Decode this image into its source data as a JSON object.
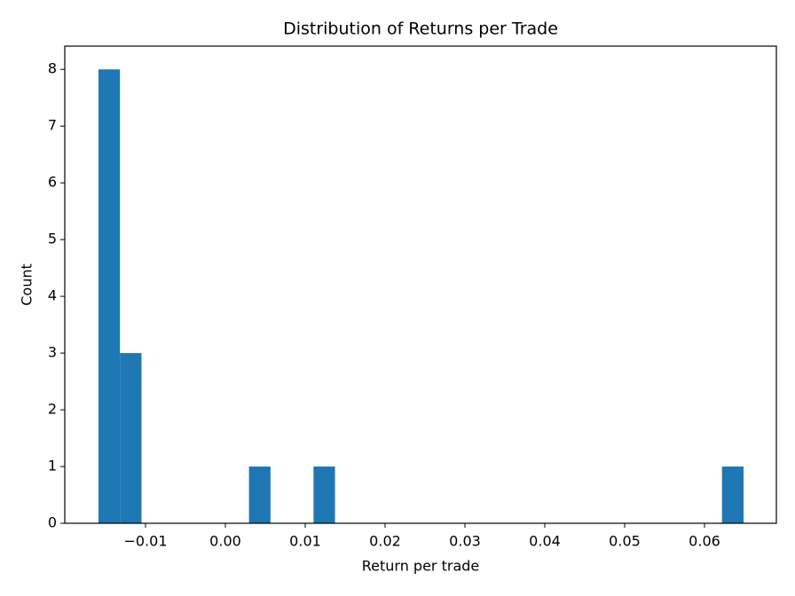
{
  "chart_data": {
    "type": "histogram",
    "title": "Distribution of Returns per Trade",
    "x_label": "Return per trade",
    "y_label": "Count",
    "color": "#1f77b4",
    "bins": [
      -0.01589,
      -0.0132,
      -0.0105,
      -0.00781,
      -0.00512,
      -0.00243,
      0.00027,
      0.00296,
      0.00565,
      0.00834,
      0.01104,
      0.01373,
      0.01642,
      0.01911,
      0.02181,
      0.0245,
      0.02719,
      0.02988,
      0.03258,
      0.03527,
      0.03796,
      0.04065,
      0.04335,
      0.04604,
      0.04873,
      0.05142,
      0.05412,
      0.05681,
      0.0595,
      0.06219,
      0.06489
    ],
    "values": [
      8,
      3,
      0,
      0,
      0,
      0,
      0,
      1,
      0,
      0,
      1,
      0,
      0,
      0,
      0,
      0,
      0,
      0,
      0,
      0,
      0,
      0,
      0,
      0,
      0,
      0,
      0,
      0,
      0,
      1
    ],
    "xlim": [
      -0.02011,
      0.069
    ],
    "ylim": [
      0,
      8.41
    ],
    "xticks": [
      {
        "value": -0.01,
        "label": "−0.01"
      },
      {
        "value": 0,
        "label": "0.00"
      },
      {
        "value": 0.01,
        "label": "0.01"
      },
      {
        "value": 0.02,
        "label": "0.02"
      },
      {
        "value": 0.03,
        "label": "0.03"
      },
      {
        "value": 0.04,
        "label": "0.04"
      },
      {
        "value": 0.05,
        "label": "0.05"
      },
      {
        "value": 0.06,
        "label": "0.06"
      }
    ],
    "yticks": [
      0,
      1,
      2,
      3,
      4,
      5,
      6,
      7,
      8
    ],
    "grid": false
  }
}
